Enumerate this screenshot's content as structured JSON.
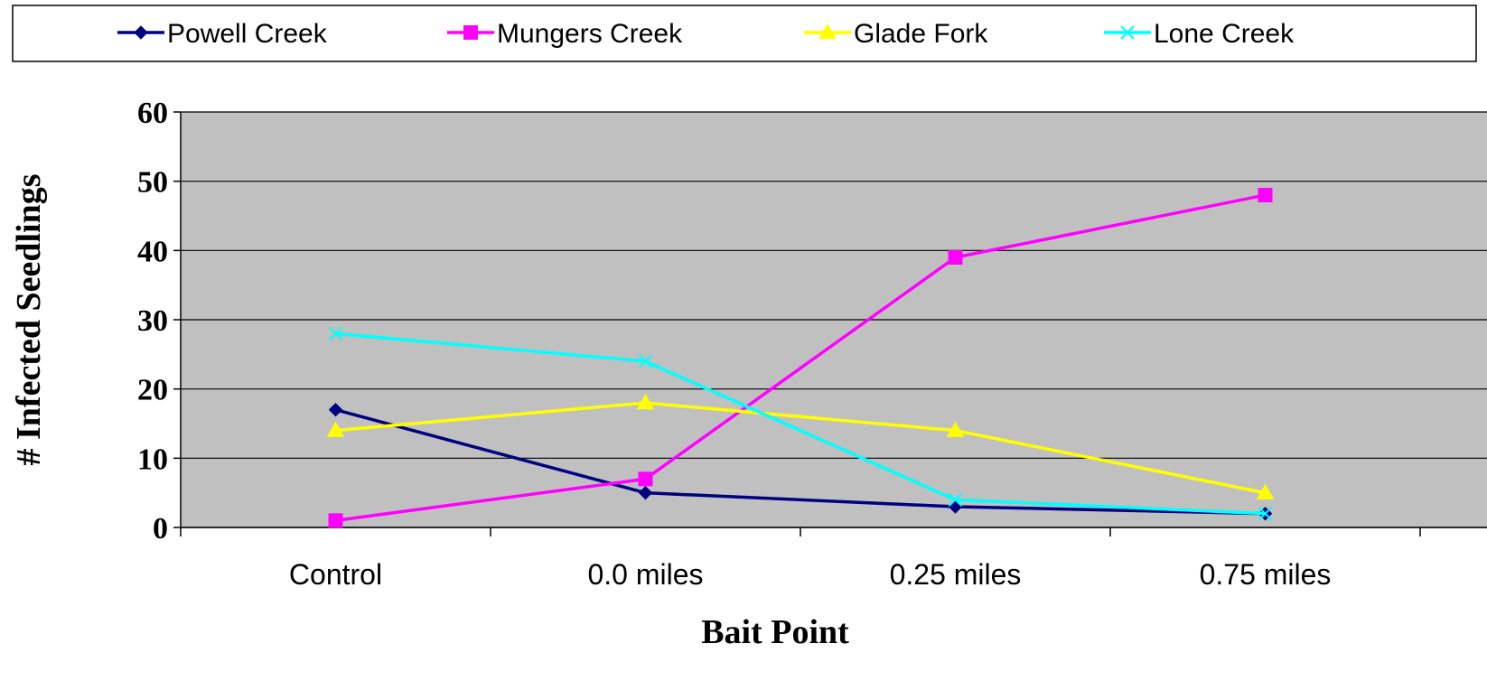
{
  "chart_data": {
    "type": "line",
    "title": "",
    "xlabel": "Bait Point",
    "ylabel": "# Infected Seedlings",
    "categories": [
      "Control",
      "0.0 miles",
      "0.25 miles",
      "0.75 miles"
    ],
    "yticks": [
      "0",
      "10",
      "20",
      "30",
      "40",
      "50",
      "60"
    ],
    "ylim": [
      0,
      60
    ],
    "grid": true,
    "legend_position": "top",
    "plot_background": "#c0c0c0",
    "series": [
      {
        "name": "Powell Creek",
        "values": [
          17,
          5,
          3,
          2
        ],
        "color": "#000080",
        "marker": "diamond"
      },
      {
        "name": "Mungers Creek",
        "values": [
          1,
          7,
          39,
          48
        ],
        "color": "#ff00ff",
        "marker": "square"
      },
      {
        "name": "Glade Fork",
        "values": [
          14,
          18,
          14,
          5
        ],
        "color": "#ffff00",
        "marker": "triangle"
      },
      {
        "name": "Lone Creek",
        "values": [
          28,
          24,
          4,
          2
        ],
        "color": "#00ffff",
        "marker": "x"
      }
    ]
  }
}
